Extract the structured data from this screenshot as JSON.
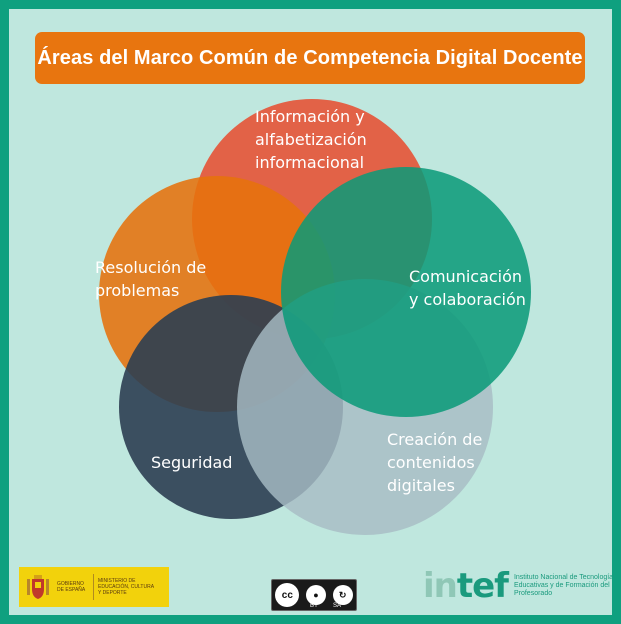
{
  "title": "Áreas del Marco Común de Competencia Digital Docente",
  "colors": {
    "frame": "#0fa07f",
    "background": "#bfe7de",
    "title_bar": "#e8750f",
    "informacion": "#e4573b",
    "resolucion": "#e6720c",
    "comunicacion": "#0a9a78",
    "seguridad": "#2c3e52",
    "creacion": "#9fb6bf"
  },
  "areas": [
    {
      "id": "informacion",
      "lines": [
        "Información y",
        "alfabetización",
        "informacional"
      ]
    },
    {
      "id": "resolucion",
      "lines": [
        "Resolución de",
        "problemas"
      ]
    },
    {
      "id": "comunicacion",
      "lines": [
        "Comunicación",
        "y colaboración"
      ]
    },
    {
      "id": "seguridad",
      "lines": [
        "Seguridad"
      ]
    },
    {
      "id": "creacion",
      "lines": [
        "Creación de",
        "contenidos",
        "digitales"
      ]
    }
  ],
  "footer": {
    "gov_line1": "GOBIERNO DE ESPAÑA",
    "gov_line2": "MINISTERIO DE EDUCACIÓN, CULTURA Y DEPORTE",
    "cc_by": "BY",
    "cc_sa": "SA",
    "intef_prefix": "in",
    "intef_suffix": "tef",
    "intef_desc": "Instituto Nacional de Tecnologías Educativas y de Formación del Profesorado"
  }
}
